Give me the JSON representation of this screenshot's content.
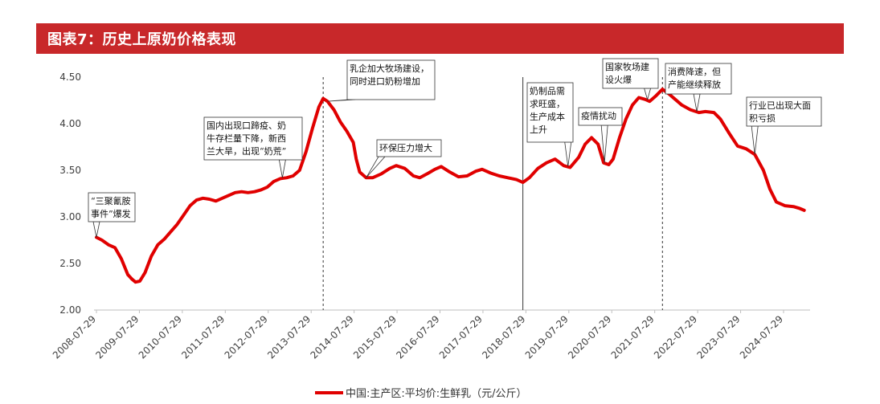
{
  "header": {
    "title": "图表7：历史上原奶价格表现"
  },
  "chart_data": {
    "type": "line",
    "title": "",
    "xlabel": "",
    "ylabel": "",
    "ylim": [
      2.0,
      4.5
    ],
    "y_ticks": [
      "2.00",
      "2.50",
      "3.00",
      "3.50",
      "4.00",
      "4.50"
    ],
    "x_ticks": [
      "2008-07-29",
      "2009-07-29",
      "2010-07-29",
      "2011-07-29",
      "2012-07-29",
      "2013-07-29",
      "2014-07-29",
      "2015-07-29",
      "2016-07-29",
      "2017-07-29",
      "2018-07-29",
      "2019-07-29",
      "2020-07-29",
      "2021-07-29",
      "2022-07-29",
      "2023-07-29",
      "2024-07-29"
    ],
    "grid": false,
    "legend_position": "bottom",
    "line_color": "#e00000",
    "series": [
      {
        "name": "中国:主产区:平均价:生鲜乳（元/公斤）",
        "points": [
          [
            2008.57,
            2.78
          ],
          [
            2008.7,
            2.75
          ],
          [
            2008.85,
            2.7
          ],
          [
            2009.0,
            2.67
          ],
          [
            2009.15,
            2.55
          ],
          [
            2009.3,
            2.38
          ],
          [
            2009.4,
            2.33
          ],
          [
            2009.48,
            2.3
          ],
          [
            2009.58,
            2.31
          ],
          [
            2009.7,
            2.4
          ],
          [
            2009.85,
            2.58
          ],
          [
            2010.0,
            2.7
          ],
          [
            2010.15,
            2.76
          ],
          [
            2010.3,
            2.84
          ],
          [
            2010.45,
            2.92
          ],
          [
            2010.6,
            3.02
          ],
          [
            2010.75,
            3.12
          ],
          [
            2010.9,
            3.18
          ],
          [
            2011.05,
            3.2
          ],
          [
            2011.2,
            3.19
          ],
          [
            2011.35,
            3.17
          ],
          [
            2011.5,
            3.2
          ],
          [
            2011.65,
            3.23
          ],
          [
            2011.8,
            3.26
          ],
          [
            2011.95,
            3.27
          ],
          [
            2012.1,
            3.26
          ],
          [
            2012.25,
            3.27
          ],
          [
            2012.4,
            3.29
          ],
          [
            2012.55,
            3.32
          ],
          [
            2012.7,
            3.38
          ],
          [
            2012.85,
            3.41
          ],
          [
            2013.0,
            3.42
          ],
          [
            2013.15,
            3.44
          ],
          [
            2013.3,
            3.5
          ],
          [
            2013.45,
            3.7
          ],
          [
            2013.6,
            3.95
          ],
          [
            2013.75,
            4.18
          ],
          [
            2013.85,
            4.27
          ],
          [
            2013.95,
            4.24
          ],
          [
            2014.1,
            4.15
          ],
          [
            2014.25,
            4.02
          ],
          [
            2014.4,
            3.92
          ],
          [
            2014.55,
            3.8
          ],
          [
            2014.62,
            3.62
          ],
          [
            2014.7,
            3.48
          ],
          [
            2014.85,
            3.42
          ],
          [
            2015.0,
            3.42
          ],
          [
            2015.2,
            3.46
          ],
          [
            2015.4,
            3.52
          ],
          [
            2015.55,
            3.55
          ],
          [
            2015.75,
            3.52
          ],
          [
            2015.95,
            3.44
          ],
          [
            2016.1,
            3.42
          ],
          [
            2016.3,
            3.47
          ],
          [
            2016.45,
            3.51
          ],
          [
            2016.6,
            3.54
          ],
          [
            2016.8,
            3.48
          ],
          [
            2017.0,
            3.43
          ],
          [
            2017.2,
            3.44
          ],
          [
            2017.4,
            3.49
          ],
          [
            2017.55,
            3.51
          ],
          [
            2017.75,
            3.47
          ],
          [
            2017.95,
            3.44
          ],
          [
            2018.15,
            3.42
          ],
          [
            2018.35,
            3.4
          ],
          [
            2018.5,
            3.37
          ],
          [
            2018.65,
            3.42
          ],
          [
            2018.85,
            3.52
          ],
          [
            2019.05,
            3.58
          ],
          [
            2019.25,
            3.62
          ],
          [
            2019.45,
            3.55
          ],
          [
            2019.6,
            3.53
          ],
          [
            2019.8,
            3.64
          ],
          [
            2019.95,
            3.78
          ],
          [
            2020.1,
            3.85
          ],
          [
            2020.25,
            3.78
          ],
          [
            2020.38,
            3.58
          ],
          [
            2020.5,
            3.56
          ],
          [
            2020.6,
            3.62
          ],
          [
            2020.75,
            3.85
          ],
          [
            2020.9,
            4.05
          ],
          [
            2021.05,
            4.2
          ],
          [
            2021.2,
            4.28
          ],
          [
            2021.35,
            4.26
          ],
          [
            2021.45,
            4.24
          ],
          [
            2021.6,
            4.3
          ],
          [
            2021.75,
            4.37
          ],
          [
            2021.9,
            4.32
          ],
          [
            2022.05,
            4.26
          ],
          [
            2022.2,
            4.2
          ],
          [
            2022.4,
            4.15
          ],
          [
            2022.6,
            4.12
          ],
          [
            2022.75,
            4.13
          ],
          [
            2022.95,
            4.12
          ],
          [
            2023.1,
            4.05
          ],
          [
            2023.3,
            3.9
          ],
          [
            2023.5,
            3.76
          ],
          [
            2023.7,
            3.73
          ],
          [
            2023.9,
            3.67
          ],
          [
            2024.1,
            3.5
          ],
          [
            2024.25,
            3.3
          ],
          [
            2024.4,
            3.16
          ],
          [
            2024.6,
            3.12
          ],
          [
            2024.8,
            3.11
          ],
          [
            2024.95,
            3.09
          ],
          [
            2025.05,
            3.07
          ]
        ]
      }
    ],
    "vertical_lines": [
      {
        "x": 2013.85,
        "style": "dashed"
      },
      {
        "x": 2018.5,
        "style": "solid"
      },
      {
        "x": 2021.75,
        "style": "dashed"
      }
    ],
    "annotations": [
      {
        "lines": [
          "“三聚氰胺",
          "事件”爆发"
        ],
        "x": 2008.57,
        "y": 2.78
      },
      {
        "lines": [
          "国内出现口蹄疫、奶",
          "牛存栏量下降，新西",
          "兰大旱，出现“奶荒”"
        ],
        "x": 2012.9,
        "y": 3.42
      },
      {
        "lines": [
          "乳企加大牧场建设，",
          "同时进口奶粉增加"
        ],
        "x": 2013.95,
        "y": 4.24
      },
      {
        "lines": [
          "环保压力增大"
        ],
        "x": 2014.85,
        "y": 3.42
      },
      {
        "lines": [
          "奶制品需",
          "求旺盛，",
          "生产成本",
          "上升"
        ],
        "x": 2019.55,
        "y": 3.54
      },
      {
        "lines": [
          "疫情扰动"
        ],
        "x": 2020.4,
        "y": 3.58
      },
      {
        "lines": [
          "国家牧场建",
          "设火爆"
        ],
        "x": 2021.4,
        "y": 4.26
      },
      {
        "lines": [
          "消费降速，但",
          "产能继续释放"
        ],
        "x": 2022.55,
        "y": 4.13
      },
      {
        "lines": [
          "行业已出现大面",
          "积亏损"
        ],
        "x": 2023.9,
        "y": 3.67
      }
    ]
  }
}
